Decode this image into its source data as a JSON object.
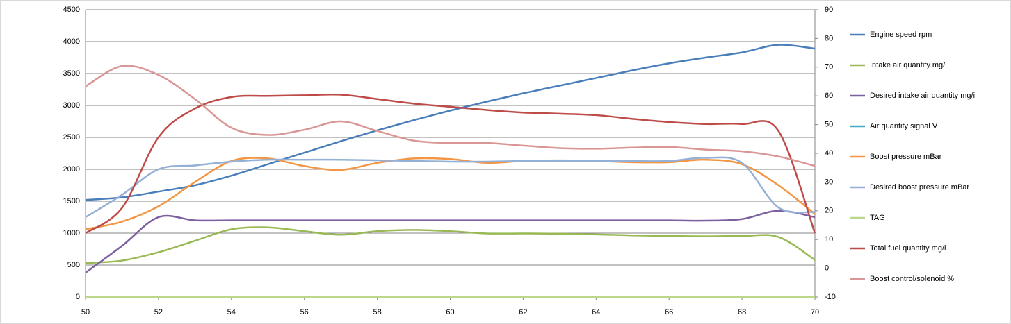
{
  "chart_data": {
    "type": "line",
    "x": [
      50,
      51,
      52,
      53,
      54,
      55,
      56,
      57,
      58,
      59,
      60,
      61,
      62,
      63,
      64,
      65,
      66,
      67,
      68,
      69,
      70
    ],
    "xlim": [
      50,
      70
    ],
    "xticks": [
      50,
      52,
      54,
      56,
      58,
      60,
      62,
      64,
      66,
      68,
      70
    ],
    "ylim": [
      0,
      4500
    ],
    "yticks": [
      0,
      500,
      1000,
      1500,
      2000,
      2500,
      3000,
      3500,
      4000,
      4500
    ],
    "y2lim": [
      -10,
      90
    ],
    "y2ticks": [
      -10,
      0,
      10,
      20,
      30,
      40,
      50,
      60,
      70,
      80,
      90
    ],
    "grid": true,
    "legend": "right",
    "series": [
      {
        "name": "Engine speed rpm",
        "color": "#4a7ebb",
        "values": [
          1520,
          1560,
          1650,
          1750,
          1900,
          2080,
          2260,
          2440,
          2610,
          2770,
          2920,
          3060,
          3190,
          3310,
          3430,
          3550,
          3660,
          3750,
          3830,
          3950,
          3890
        ]
      },
      {
        "name": "Intake air quantity mg/i",
        "color": "#98b954",
        "values": [
          530,
          570,
          700,
          880,
          1060,
          1090,
          1030,
          975,
          1030,
          1050,
          1030,
          995,
          995,
          990,
          980,
          965,
          955,
          950,
          955,
          940,
          580
        ]
      },
      {
        "name": "Desired intake air quantity  mg/i",
        "color": "#7d60a0",
        "values": [
          380,
          800,
          1250,
          1200,
          1200,
          1200,
          1200,
          1200,
          1200,
          1200,
          1200,
          1200,
          1200,
          1200,
          1200,
          1200,
          1200,
          1195,
          1220,
          1350,
          1250
        ]
      },
      {
        "name": "Air quantity signal V",
        "color": "#46aac5",
        "values": [
          3,
          3,
          3,
          3,
          3,
          3,
          3,
          3,
          3,
          3,
          3,
          3,
          3,
          3,
          3,
          3,
          3,
          3,
          3,
          3,
          3
        ]
      },
      {
        "name": "Boost pressure mBar",
        "color": "#f39644",
        "values": [
          1060,
          1180,
          1420,
          1800,
          2130,
          2170,
          2050,
          1990,
          2100,
          2170,
          2160,
          2100,
          2130,
          2140,
          2130,
          2110,
          2110,
          2150,
          2080,
          1750,
          1300
        ]
      },
      {
        "name": "Desired boost pressure mBar",
        "color": "#94b0d6",
        "values": [
          1250,
          1600,
          2000,
          2060,
          2120,
          2150,
          2150,
          2150,
          2140,
          2130,
          2120,
          2120,
          2130,
          2130,
          2130,
          2130,
          2130,
          2180,
          2100,
          1400,
          1330
        ]
      },
      {
        "name": "TAG",
        "color": "#bcd68a",
        "values": [
          2,
          2,
          2,
          2,
          2,
          2,
          2,
          2,
          2,
          2,
          2,
          2,
          2,
          2,
          2,
          2,
          2,
          2,
          2,
          2,
          2
        ]
      },
      {
        "name": "Total fuel quantity  mg/i",
        "color": "#be4b48",
        "axis": "y2",
        "values": [
          12.2,
          21,
          45.6,
          55.6,
          59.6,
          60,
          60.2,
          60.4,
          58.9,
          57.3,
          56.2,
          55.1,
          54.2,
          53.8,
          53.3,
          52,
          50.9,
          50.2,
          50.2,
          47.8,
          12.2
        ]
      },
      {
        "name": "Boost control/solenoid %",
        "color": "#d99694",
        "axis": "y2",
        "values": [
          63.3,
          70.4,
          67.3,
          58.9,
          48.9,
          46.4,
          48.2,
          51.1,
          47.8,
          44.4,
          43.6,
          43.6,
          42.7,
          41.8,
          41.6,
          42,
          42.2,
          41.3,
          40.7,
          38.9,
          35.6
        ]
      }
    ]
  }
}
